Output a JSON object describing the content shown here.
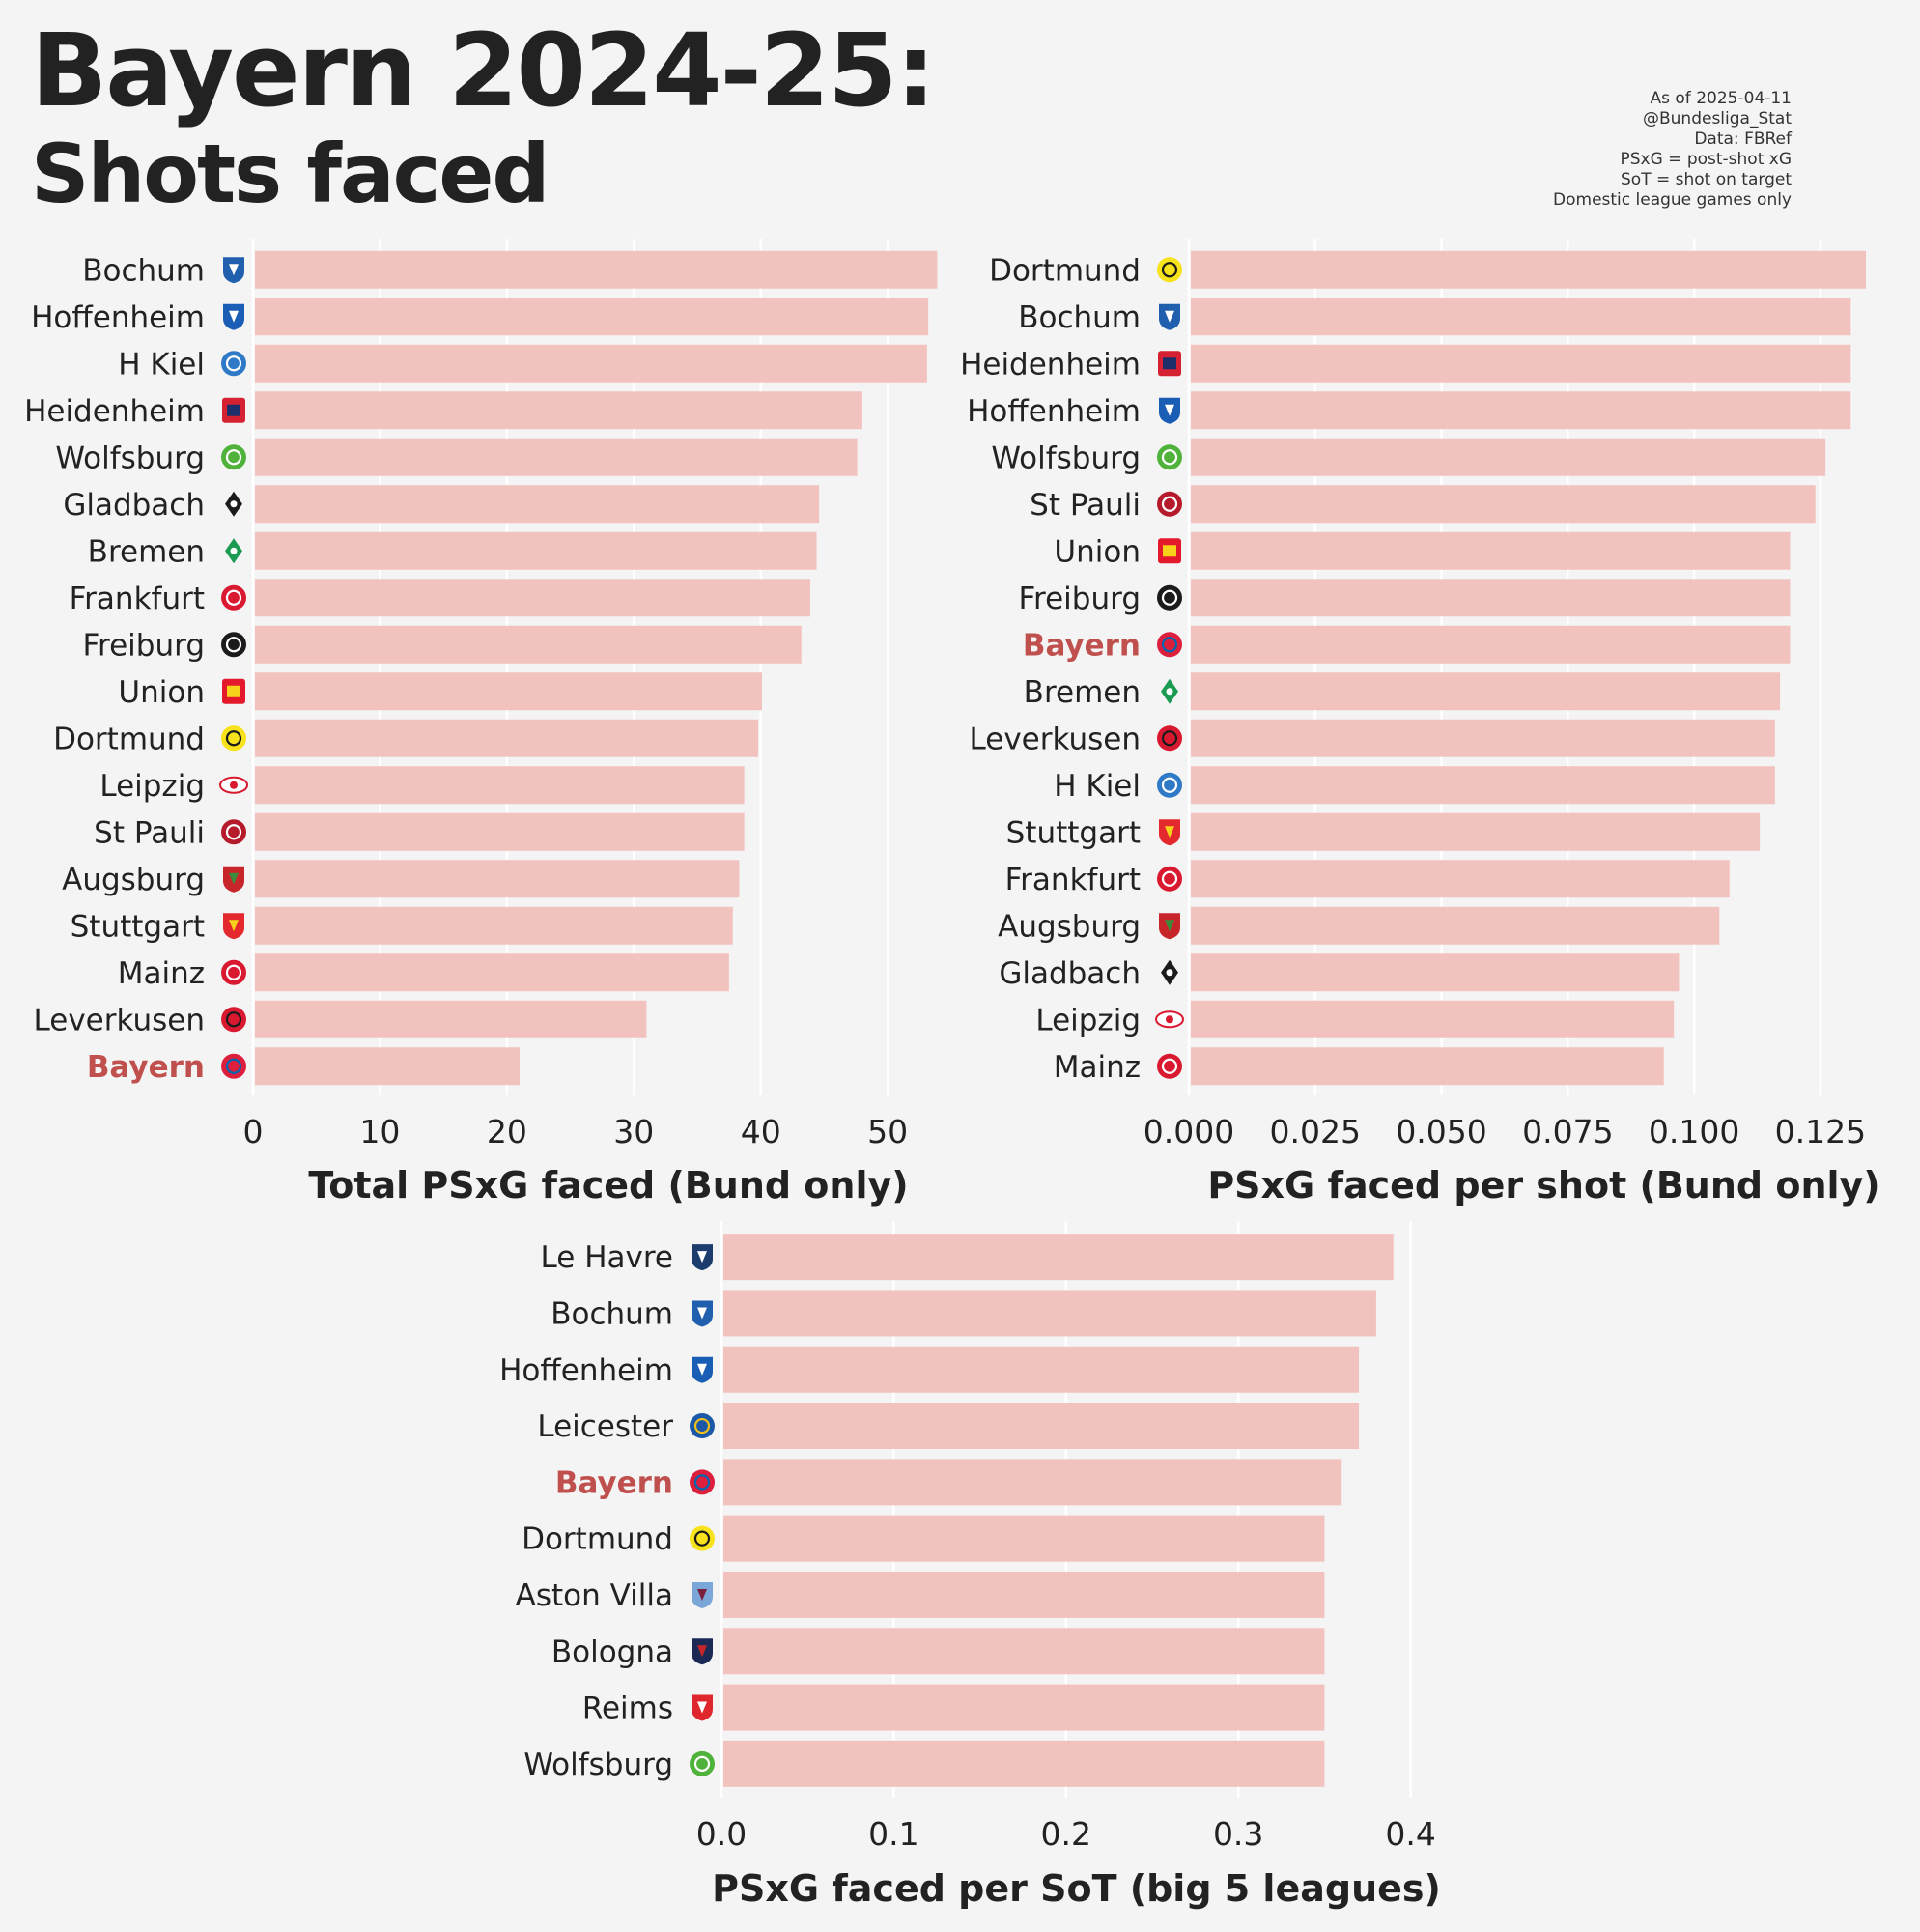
{
  "title": "Bayern 2024-25:",
  "subtitle": "Shots faced",
  "notes": [
    "As of 2025-04-11",
    "@Bundesliga_Stat",
    "Data: FBRef",
    "PSxG = post-shot xG",
    "SoT = shot on target",
    "Domestic league games only"
  ],
  "colors": {
    "bar": "#f2c2be",
    "highlight": "#c0504d",
    "grid": "#ffffff",
    "text": "#222222",
    "background": "#f4f4f4"
  },
  "highlight_team": "Bayern",
  "chart_data": [
    {
      "type": "bar",
      "orientation": "horizontal",
      "xlabel": "Total PSxG faced (Bund only)",
      "xlim": [
        0,
        56
      ],
      "ticks": [
        0,
        10,
        20,
        30,
        40,
        50
      ],
      "tick_labels": [
        "0",
        "10",
        "20",
        "30",
        "40",
        "50"
      ],
      "grid": true,
      "categories": [
        "Bochum",
        "Hoffenheim",
        "H Kiel",
        "Heidenheim",
        "Wolfsburg",
        "Gladbach",
        "Bremen",
        "Frankfurt",
        "Freiburg",
        "Union",
        "Dortmund",
        "Leipzig",
        "St Pauli",
        "Augsburg",
        "Stuttgart",
        "Mainz",
        "Leverkusen",
        "Bayern"
      ],
      "values": [
        53.9,
        53.2,
        53.1,
        48.0,
        47.6,
        44.6,
        44.4,
        43.9,
        43.2,
        40.1,
        39.8,
        38.7,
        38.7,
        38.3,
        37.8,
        37.5,
        31.0,
        21.0
      ]
    },
    {
      "type": "bar",
      "orientation": "horizontal",
      "xlabel": "PSxG faced per shot (Bund only)",
      "xlim": [
        0,
        0.1405
      ],
      "ticks": [
        0,
        0.025,
        0.05,
        0.075,
        0.1,
        0.125
      ],
      "tick_labels": [
        "0.000",
        "0.025",
        "0.050",
        "0.075",
        "0.100",
        "0.125"
      ],
      "grid": true,
      "categories": [
        "Dortmund",
        "Bochum",
        "Heidenheim",
        "Hoffenheim",
        "Wolfsburg",
        "St Pauli",
        "Union",
        "Freiburg",
        "Bayern",
        "Bremen",
        "Leverkusen",
        "H Kiel",
        "Stuttgart",
        "Frankfurt",
        "Augsburg",
        "Gladbach",
        "Leipzig",
        "Mainz"
      ],
      "values": [
        0.134,
        0.131,
        0.131,
        0.131,
        0.126,
        0.124,
        0.119,
        0.119,
        0.119,
        0.117,
        0.116,
        0.116,
        0.113,
        0.107,
        0.105,
        0.097,
        0.096,
        0.094
      ]
    },
    {
      "type": "bar",
      "orientation": "horizontal",
      "xlabel": "PSxG faced per SoT (big 5 leagues)",
      "xlim": [
        0,
        0.412
      ],
      "ticks": [
        0,
        0.1,
        0.2,
        0.3,
        0.4
      ],
      "tick_labels": [
        "0.0",
        "0.1",
        "0.2",
        "0.3",
        "0.4"
      ],
      "grid": true,
      "categories": [
        "Le Havre",
        "Bochum",
        "Hoffenheim",
        "Leicester",
        "Bayern",
        "Dortmund",
        "Aston Villa",
        "Bologna",
        "Reims",
        "Wolfsburg"
      ],
      "values": [
        0.39,
        0.38,
        0.37,
        0.37,
        0.36,
        0.35,
        0.35,
        0.35,
        0.35,
        0.35
      ]
    }
  ],
  "crests": {
    "Bochum": {
      "color": "#1f5fae",
      "fg": "#ffffff",
      "shape": "shield"
    },
    "Hoffenheim": {
      "color": "#1a5db4",
      "fg": "#ffffff",
      "shape": "shield"
    },
    "H Kiel": {
      "color": "#2f7ac6",
      "fg": "#ffffff",
      "shape": "circle"
    },
    "Heidenheim": {
      "color": "#d52132",
      "fg": "#1d2f6b",
      "shape": "square"
    },
    "Wolfsburg": {
      "color": "#4fb23a",
      "fg": "#ffffff",
      "shape": "circle"
    },
    "Gladbach": {
      "color": "#1b1b1b",
      "fg": "#ffffff",
      "shape": "diamond"
    },
    "Bremen": {
      "color": "#1b9a52",
      "fg": "#ffffff",
      "shape": "diamond"
    },
    "Frankfurt": {
      "color": "#d9192f",
      "fg": "#ffffff",
      "shape": "circle"
    },
    "Freiburg": {
      "color": "#1b1b1b",
      "fg": "#ffffff",
      "shape": "circle"
    },
    "Union": {
      "color": "#e4192b",
      "fg": "#f7d21a",
      "shape": "square"
    },
    "Dortmund": {
      "color": "#f7e21b",
      "fg": "#1b1b1b",
      "shape": "circle"
    },
    "Leipzig": {
      "color": "#d9192f",
      "fg": "#ffffff",
      "shape": "oval"
    },
    "St Pauli": {
      "color": "#b51b2a",
      "fg": "#ffffff",
      "shape": "circle"
    },
    "Augsburg": {
      "color": "#c8252b",
      "fg": "#3d8b3a",
      "shape": "shield"
    },
    "Stuttgart": {
      "color": "#e3292e",
      "fg": "#f7d21a",
      "shape": "shield"
    },
    "Mainz": {
      "color": "#d9192f",
      "fg": "#ffffff",
      "shape": "circle"
    },
    "Leverkusen": {
      "color": "#d9192f",
      "fg": "#1b1b1b",
      "shape": "circle"
    },
    "Bayern": {
      "color": "#dc1f3c",
      "fg": "#0066b2",
      "shape": "circle"
    },
    "Le Havre": {
      "color": "#1c3c6e",
      "fg": "#ffffff",
      "shape": "shield"
    },
    "Leicester": {
      "color": "#1b58a8",
      "fg": "#f2c019",
      "shape": "circle"
    },
    "Aston Villa": {
      "color": "#7aa7d8",
      "fg": "#7a1e3c",
      "shape": "shield"
    },
    "Bologna": {
      "color": "#1b2a55",
      "fg": "#c8252b",
      "shape": "shield"
    },
    "Reims": {
      "color": "#e0262d",
      "fg": "#ffffff",
      "shape": "shield"
    }
  }
}
